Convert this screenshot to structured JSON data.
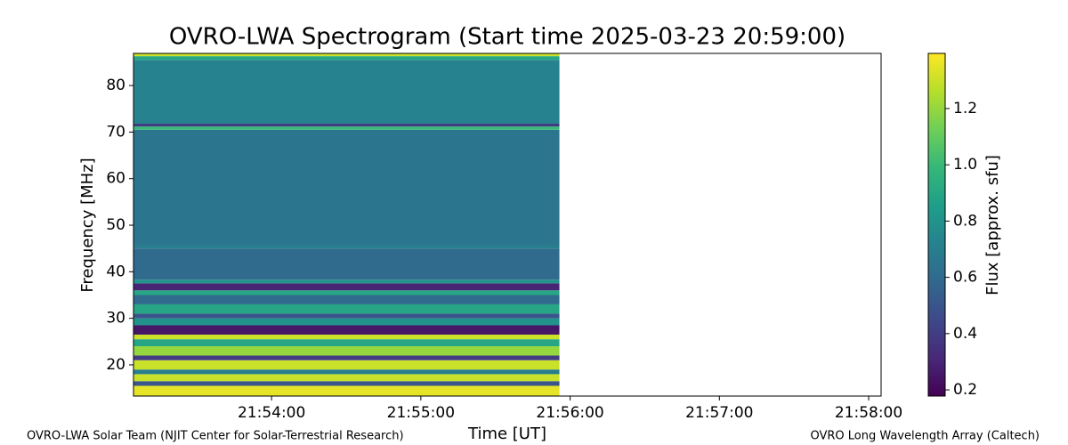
{
  "chart_data": {
    "type": "spectrogram",
    "title": "OVRO-LWA Spectrogram (Start time 2025-03-23 20:59:00)",
    "xlabel": "Time [UT]",
    "ylabel": "Frequency [MHz]",
    "colorbar_label": "Flux [approx. sfu]",
    "colormap": "viridis",
    "xlim": [
      78784.5,
      79085
    ],
    "xticks": [
      {
        "value": 78840,
        "label": "21:54:00"
      },
      {
        "value": 78900,
        "label": "21:55:00"
      },
      {
        "value": 78960,
        "label": "21:56:00"
      },
      {
        "value": 79020,
        "label": "21:57:00"
      },
      {
        "value": 79080,
        "label": "21:58:00"
      }
    ],
    "ylim": [
      13.3,
      86.9
    ],
    "yticks": [
      20,
      30,
      40,
      50,
      60,
      70,
      80
    ],
    "clim": [
      0.178,
      1.396
    ],
    "cticks": [
      0.2,
      0.4,
      0.6,
      0.8,
      {
        "value": 1,
        "label": "1.0"
      },
      1.2
    ],
    "time_range": [
      78784.5,
      78955.7
    ],
    "frequency_edges": [
      13.3,
      15.5,
      16.5,
      18,
      19,
      21,
      22,
      24,
      25.5,
      26.5,
      28.5,
      30,
      31,
      33,
      35,
      36,
      37.5,
      38.3,
      45,
      45.8,
      70.5,
      71.2,
      71.8,
      85.5,
      86.3,
      86.9
    ],
    "flux": [
      1.35,
      0.5,
      1.3,
      0.7,
      1.3,
      0.4,
      1.2,
      0.9,
      1.3,
      0.25,
      0.8,
      0.5,
      0.9,
      0.6,
      0.9,
      0.3,
      0.8,
      0.6,
      0.7,
      0.65,
      1.0,
      0.4,
      0.72,
      0.9,
      1.3
    ]
  },
  "footer": {
    "left": "OVRO-LWA Solar Team (NJIT Center for Solar-Terrestrial Research)",
    "right": "OVRO Long Wavelength Array (Caltech)"
  }
}
